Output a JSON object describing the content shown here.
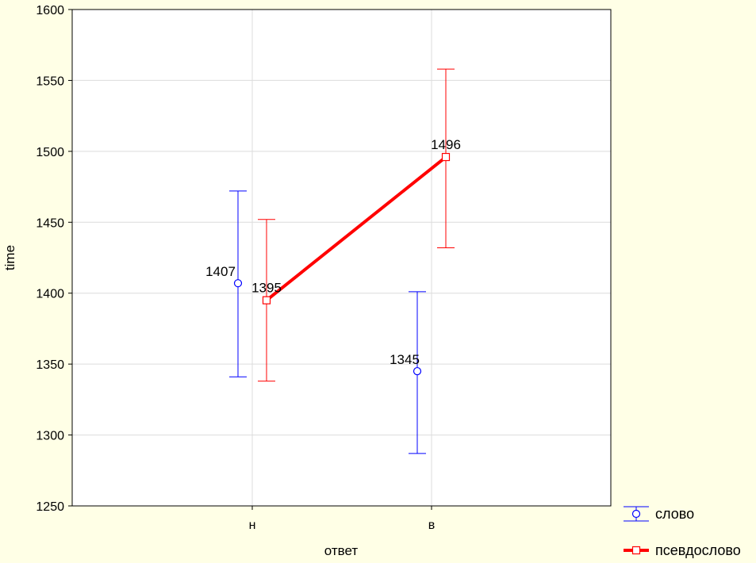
{
  "chart_data": {
    "type": "line",
    "xlabel": "ответ",
    "ylabel": "time",
    "categories": [
      "н",
      "в"
    ],
    "ylim": [
      1250,
      1600
    ],
    "yticks": [
      1250,
      1300,
      1350,
      1400,
      1450,
      1500,
      1550,
      1600
    ],
    "grid": true,
    "legend_position": "bottom-right",
    "series": [
      {
        "name": "слово",
        "color": "#0000ff",
        "marker": "circle",
        "values": [
          1407,
          1345
        ],
        "ci_low": [
          1341,
          1287
        ],
        "ci_high": [
          1472,
          1401
        ],
        "labels": [
          "1407",
          "1345"
        ],
        "line": false
      },
      {
        "name": "псевдослово",
        "color": "#ff0000",
        "marker": "square",
        "values": [
          1395,
          1496
        ],
        "ci_low": [
          1338,
          1432
        ],
        "ci_high": [
          1452,
          1558
        ],
        "labels": [
          "1395",
          "1496"
        ],
        "line": true
      }
    ]
  }
}
